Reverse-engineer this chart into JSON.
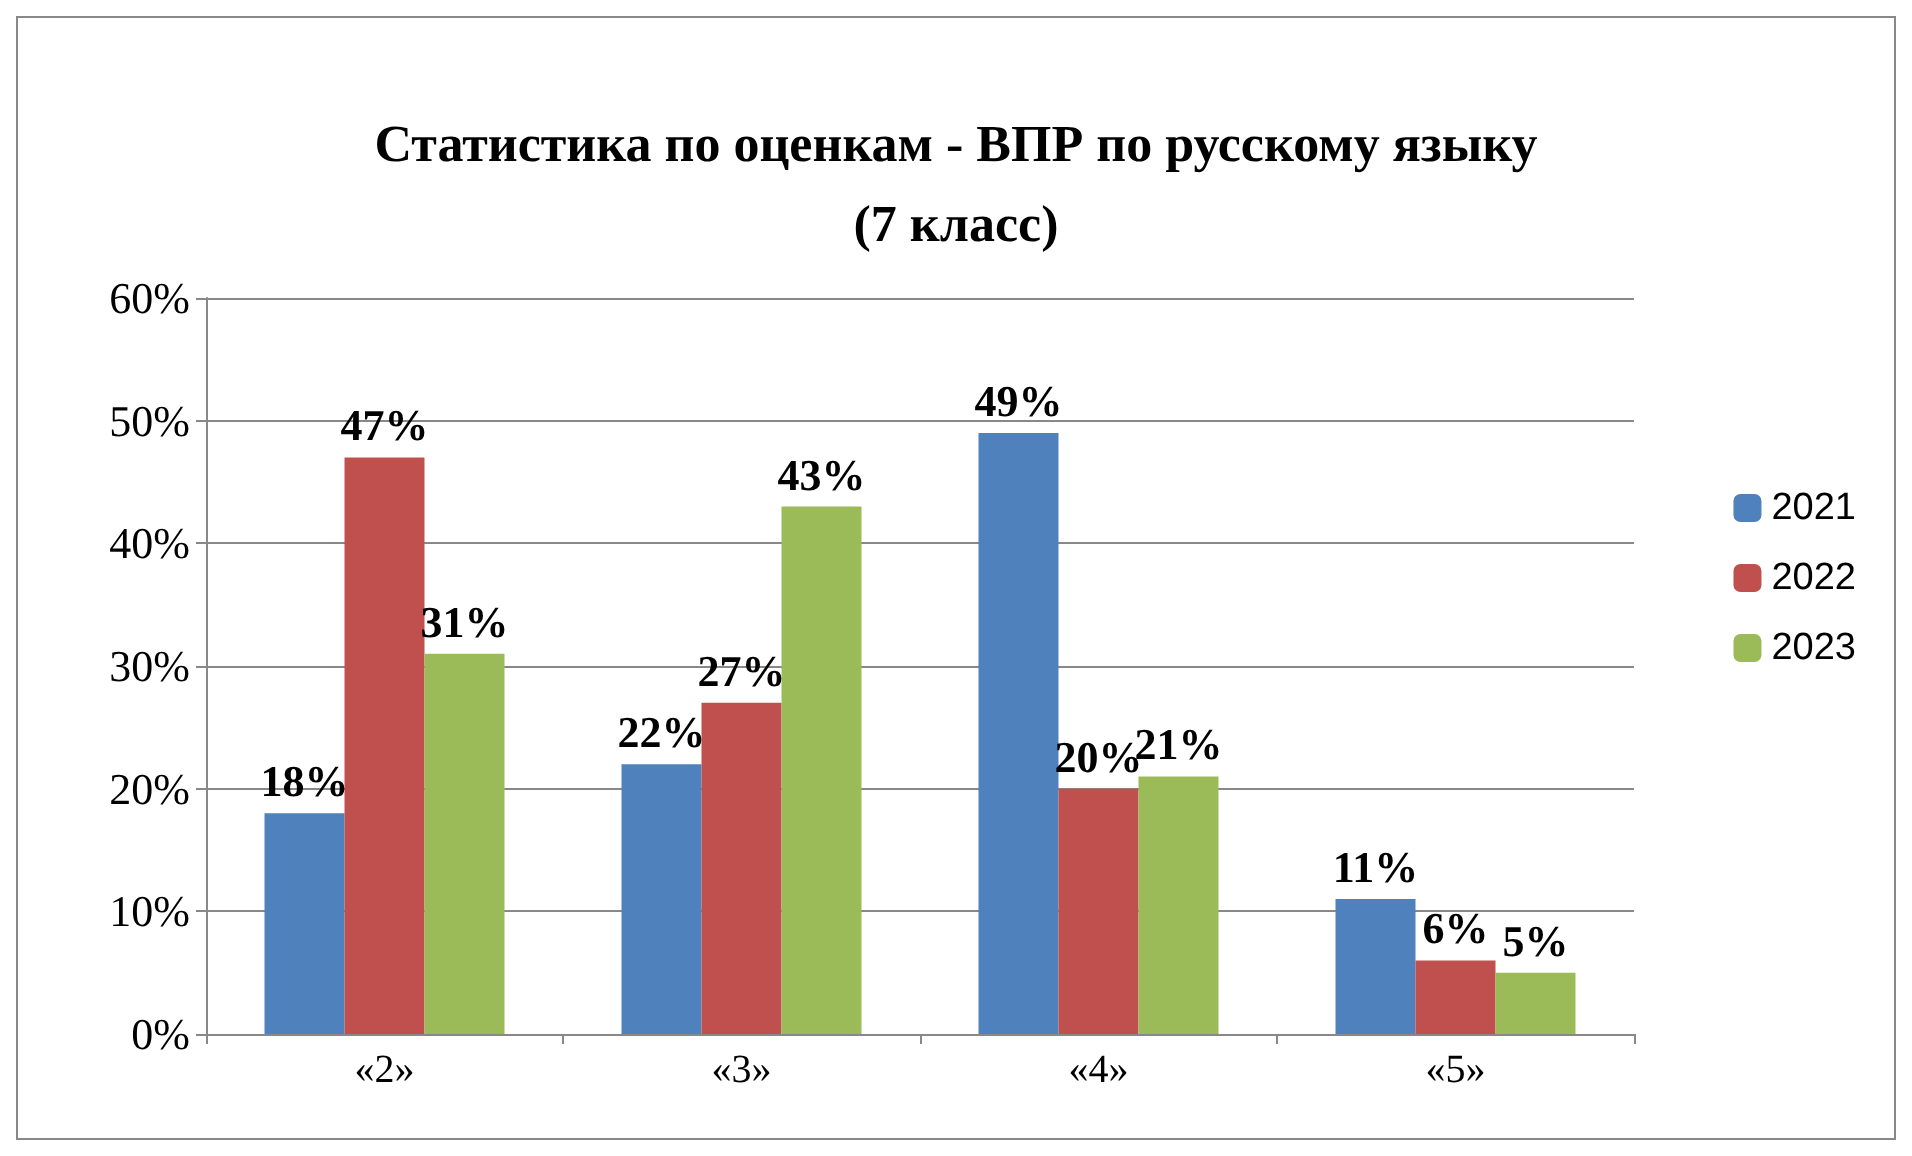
{
  "chart_data": {
    "type": "bar",
    "title": "Статистика по оценкам - ВПР по русскому языку\n(7 класс)",
    "categories": [
      "«2»",
      "«3»",
      "«4»",
      "«5»"
    ],
    "series": [
      {
        "name": "2021",
        "color": "#4f81bd",
        "values": [
          18,
          22,
          49,
          11
        ],
        "value_labels": [
          "18%",
          "22%",
          "49%",
          "11%"
        ]
      },
      {
        "name": "2022",
        "color": "#c0504d",
        "values": [
          47,
          27,
          20,
          6
        ],
        "value_labels": [
          "47%",
          "27%",
          "20%",
          "6%"
        ]
      },
      {
        "name": "2023",
        "color": "#9bbb59",
        "values": [
          31,
          43,
          21,
          5
        ],
        "value_labels": [
          "31%",
          "43%",
          "21%",
          "5%"
        ]
      }
    ],
    "ylim": [
      0,
      60
    ],
    "yticks": [
      {
        "value": 0,
        "label": "0%"
      },
      {
        "value": 10,
        "label": "10%"
      },
      {
        "value": 20,
        "label": "20%"
      },
      {
        "value": 30,
        "label": "30%"
      },
      {
        "value": 40,
        "label": "40%"
      },
      {
        "value": 50,
        "label": "50%"
      },
      {
        "value": 60,
        "label": "60%"
      }
    ],
    "grid": "y",
    "legend": "right"
  }
}
